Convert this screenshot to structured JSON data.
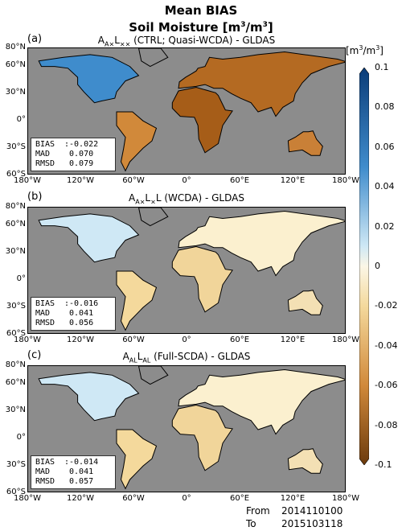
{
  "figure": {
    "title_line1": "Mean BIAS",
    "title_line2": "Soil Moisture [m³/m³]"
  },
  "panels": [
    {
      "label": "(a)",
      "title": "A<sub>A×</sub>L<sub>××</sub> (CTRL; Quasi-WCDA) - GLDAS",
      "bias": "-0.022",
      "mad": "0.070",
      "rmsd": "0.079"
    },
    {
      "label": "(b)",
      "title": "A<sub>A×</sub>L<sub>×</sub>L (WCDA) - GLDAS",
      "bias": "-0.016",
      "mad": "0.041",
      "rmsd": "0.056"
    },
    {
      "label": "(c)",
      "title": "A<sub>AL</sub>L<sub>AL</sub> (Full-SCDA) - GLDAS",
      "bias": "-0.014",
      "mad": "0.041",
      "rmsd": "0.057"
    }
  ],
  "stat_keys": {
    "bias": "BIAS",
    "mad": "MAD",
    "rmsd": "RMSD"
  },
  "lat_ticks": [
    "80°N",
    "60°N",
    "30°N",
    "0°",
    "30°S",
    "60°S"
  ],
  "lon_ticks": [
    "180°W",
    "120°W",
    "60°W",
    "0°",
    "60°E",
    "120°E",
    "180°W"
  ],
  "colorbar": {
    "unit": "[m³/m³]",
    "ticks": [
      "0.1",
      "0.08",
      "0.06",
      "0.04",
      "0.02",
      "0",
      "-0.02",
      "-0.04",
      "-0.06",
      "-0.08",
      "-0.1"
    ],
    "colors": {
      "wet": "#0b3c78",
      "mid_wet": "#3f8ccc",
      "light_wet": "#cfe8f5",
      "neutral": "#fbf6e6",
      "light_dry": "#f4d99c",
      "mid_dry": "#d1893a",
      "dry": "#6b3a0c"
    }
  },
  "period": {
    "from_label": "From",
    "from_value": "2014110100",
    "to_label": "To",
    "to_value": "2015103118"
  }
}
